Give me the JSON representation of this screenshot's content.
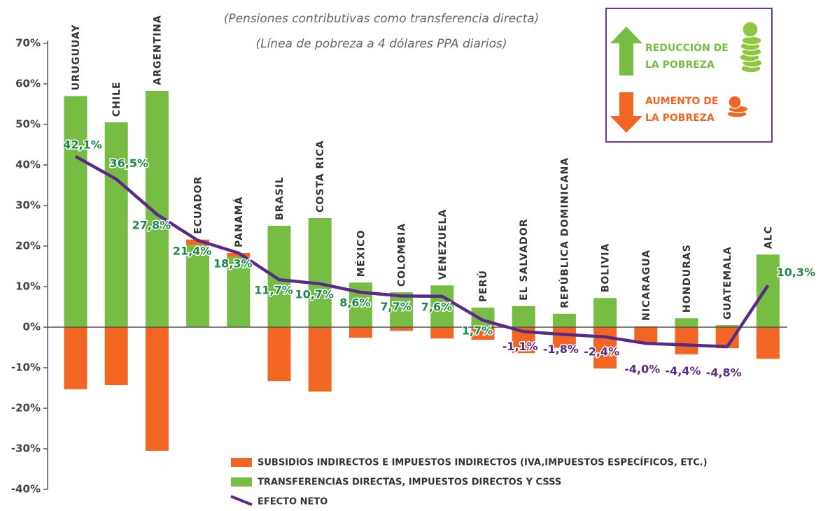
{
  "chart_data": {
    "type": "bar",
    "subtitle": [
      "(Pensiones contributivas como transferencia directa)",
      "(Línea de pobreza a 4 dólares PPA diarios)"
    ],
    "categories": [
      "URUGUUAY",
      "CHILE",
      "ARGENTINA",
      "ECUADOR",
      "PANAMÁ",
      "BRASIL",
      "COSTA RICA",
      "MÉXICO",
      "COLOMBIA",
      "VENEZUELA",
      "PERÚ",
      "EL SALVADOR",
      "REPÚBLICA DOMINICANA",
      "BOLIVIA",
      "NICARAGUA",
      "HONDURAS",
      "GUATEMALA",
      "ALC"
    ],
    "series": [
      {
        "name": "SUBSIDIOS INDIRECTOS E IMPUESTOS INDIRECTOS (IVA,IMPUESTOS ESPECÍFICOS, ETC.)",
        "color": "#f26522",
        "values": [
          -15.3,
          -14.3,
          -30.5,
          1.3,
          0.9,
          -13.3,
          -15.9,
          -2.6,
          -0.9,
          -2.8,
          -3.1,
          -6.4,
          -5.1,
          -10.2,
          -3.8,
          -6.7,
          -5.2,
          -7.8
        ]
      },
      {
        "name": "TRANSFERENCIAS DIRECTAS, IMPUESTOS DIRECTOS Y CSSS",
        "color": "#77bd43",
        "values": [
          57,
          50.5,
          58.3,
          20.3,
          17.4,
          25,
          26.9,
          11,
          8.6,
          10.3,
          4.8,
          5.2,
          3.3,
          7.2,
          0.2,
          2.2,
          0.5,
          17.9
        ]
      },
      {
        "name": "EFECTO NETO",
        "color": "#5b2a86",
        "type": "line",
        "values": [
          42.1,
          36.5,
          27.8,
          21.4,
          18.3,
          11.7,
          10.7,
          8.6,
          7.7,
          7.6,
          1.7,
          -1.1,
          -1.8,
          -2.4,
          -4.0,
          -4.4,
          -4.8,
          10.3
        ],
        "value_labels": [
          "42,1%",
          "36,5%",
          "27,8%",
          "21,4%",
          "18,3%",
          "11,7%",
          "10,7%",
          "8,6%",
          "7,7%",
          "7,6%",
          "1,7%",
          "-1,1%",
          "-1,8%",
          "-2,4%",
          "-4,0%",
          "-4,4%",
          "-4,8%",
          "10,3%"
        ]
      }
    ],
    "ylim": [
      -40,
      70
    ],
    "yticks": [
      {
        "value": 70,
        "label": "70%"
      },
      {
        "value": 60,
        "label": "60%"
      },
      {
        "value": 50,
        "label": "50%"
      },
      {
        "value": 40,
        "label": "40%"
      },
      {
        "value": 30,
        "label": "30%"
      },
      {
        "value": 20,
        "label": "20%"
      },
      {
        "value": 10,
        "label": "10%"
      },
      {
        "value": 0,
        "label": "0%"
      },
      {
        "value": -10,
        "label": "-10%"
      },
      {
        "value": -20,
        "label": "-20%"
      },
      {
        "value": -30,
        "label": "-30%"
      },
      {
        "value": -40,
        "label": "-40%"
      }
    ],
    "key": {
      "reduction": [
        "REDUCCIÓN DE",
        "LA POBREZA"
      ],
      "increase": [
        "AUMENTO DE",
        "LA POBREZA"
      ]
    }
  }
}
